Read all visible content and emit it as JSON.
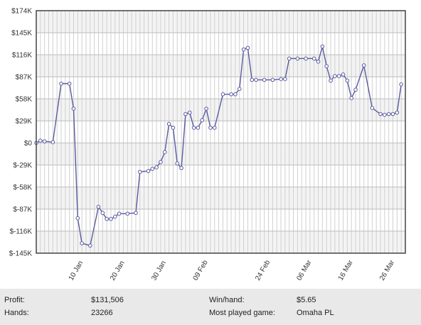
{
  "chart_data": {
    "type": "line",
    "title": "",
    "xlabel": "",
    "ylabel": "",
    "y_ticks": [
      "$174K",
      "$145K",
      "$116K",
      "$87K",
      "$58K",
      "$29K",
      "$0",
      "$-29K",
      "$-58K",
      "$-87K",
      "$-116K",
      "$-145K"
    ],
    "y_tick_values": [
      174,
      145,
      116,
      87,
      58,
      29,
      0,
      -29,
      -58,
      -87,
      -116,
      -145
    ],
    "ylim": [
      -145,
      174
    ],
    "x_start": "2021-01-02",
    "x_end": "2021-04-01",
    "x_ticks": [
      "10 Jan",
      "20 Jan",
      "30 Jan",
      "09 Feb",
      "24 Feb",
      "06 Mar",
      "16 Mar",
      "26 Mar"
    ],
    "x_tick_dates": [
      "2021-01-10",
      "2021-01-20",
      "2021-01-30",
      "2021-02-09",
      "2021-02-24",
      "2021-03-06",
      "2021-03-16",
      "2021-03-26"
    ],
    "line_color": "#5a5aa0",
    "grid": true,
    "series": [
      {
        "dates": [
          "2021-01-02",
          "2021-01-03",
          "2021-01-04",
          "2021-01-06",
          "2021-01-08",
          "2021-01-10",
          "2021-01-11",
          "2021-01-12",
          "2021-01-13",
          "2021-01-15",
          "2021-01-17",
          "2021-01-18",
          "2021-01-19",
          "2021-01-20",
          "2021-01-21",
          "2021-01-22",
          "2021-01-24",
          "2021-01-26",
          "2021-01-27",
          "2021-01-29",
          "2021-01-30",
          "2021-01-31",
          "2021-02-01",
          "2021-02-02",
          "2021-02-03",
          "2021-02-04",
          "2021-02-05",
          "2021-02-06",
          "2021-02-07",
          "2021-02-08",
          "2021-02-09",
          "2021-02-10",
          "2021-02-11",
          "2021-02-12",
          "2021-02-13",
          "2021-02-14",
          "2021-02-16",
          "2021-02-18",
          "2021-02-19",
          "2021-02-20",
          "2021-02-21",
          "2021-02-22",
          "2021-02-23",
          "2021-02-24",
          "2021-02-26",
          "2021-02-28",
          "2021-03-02",
          "2021-03-03",
          "2021-03-04",
          "2021-03-06",
          "2021-03-08",
          "2021-03-10",
          "2021-03-11",
          "2021-03-12",
          "2021-03-13",
          "2021-03-14",
          "2021-03-15",
          "2021-03-16",
          "2021-03-17",
          "2021-03-18",
          "2021-03-19",
          "2021-03-20",
          "2021-03-22",
          "2021-03-24",
          "2021-03-26",
          "2021-03-27",
          "2021-03-28",
          "2021-03-29",
          "2021-03-30",
          "2021-03-31"
        ],
        "values": [
          0,
          3,
          2,
          1,
          78,
          78,
          45,
          -99,
          -132,
          -135,
          -84,
          -92,
          -100,
          -100,
          -97,
          -93,
          -93,
          -92,
          -38,
          -37,
          -34,
          -32,
          -25,
          -12,
          25,
          20,
          -27,
          -33,
          38,
          40,
          20,
          20,
          30,
          45,
          20,
          20,
          64,
          64,
          64,
          71,
          123,
          125,
          83,
          83,
          83,
          83,
          84,
          84,
          111,
          111,
          111,
          111,
          107,
          127,
          101,
          82,
          88,
          88,
          90,
          82,
          59,
          70,
          102,
          46,
          38,
          37,
          38,
          38,
          40,
          77
        ]
      }
    ]
  },
  "stats": {
    "profit_label": "Profit:",
    "profit_value": "$131,506",
    "hands_label": "Hands:",
    "hands_value": "23266",
    "winhand_label": "Win/hand:",
    "winhand_value": "$5.65",
    "game_label": "Most played game:",
    "game_value": "Omaha PL"
  }
}
